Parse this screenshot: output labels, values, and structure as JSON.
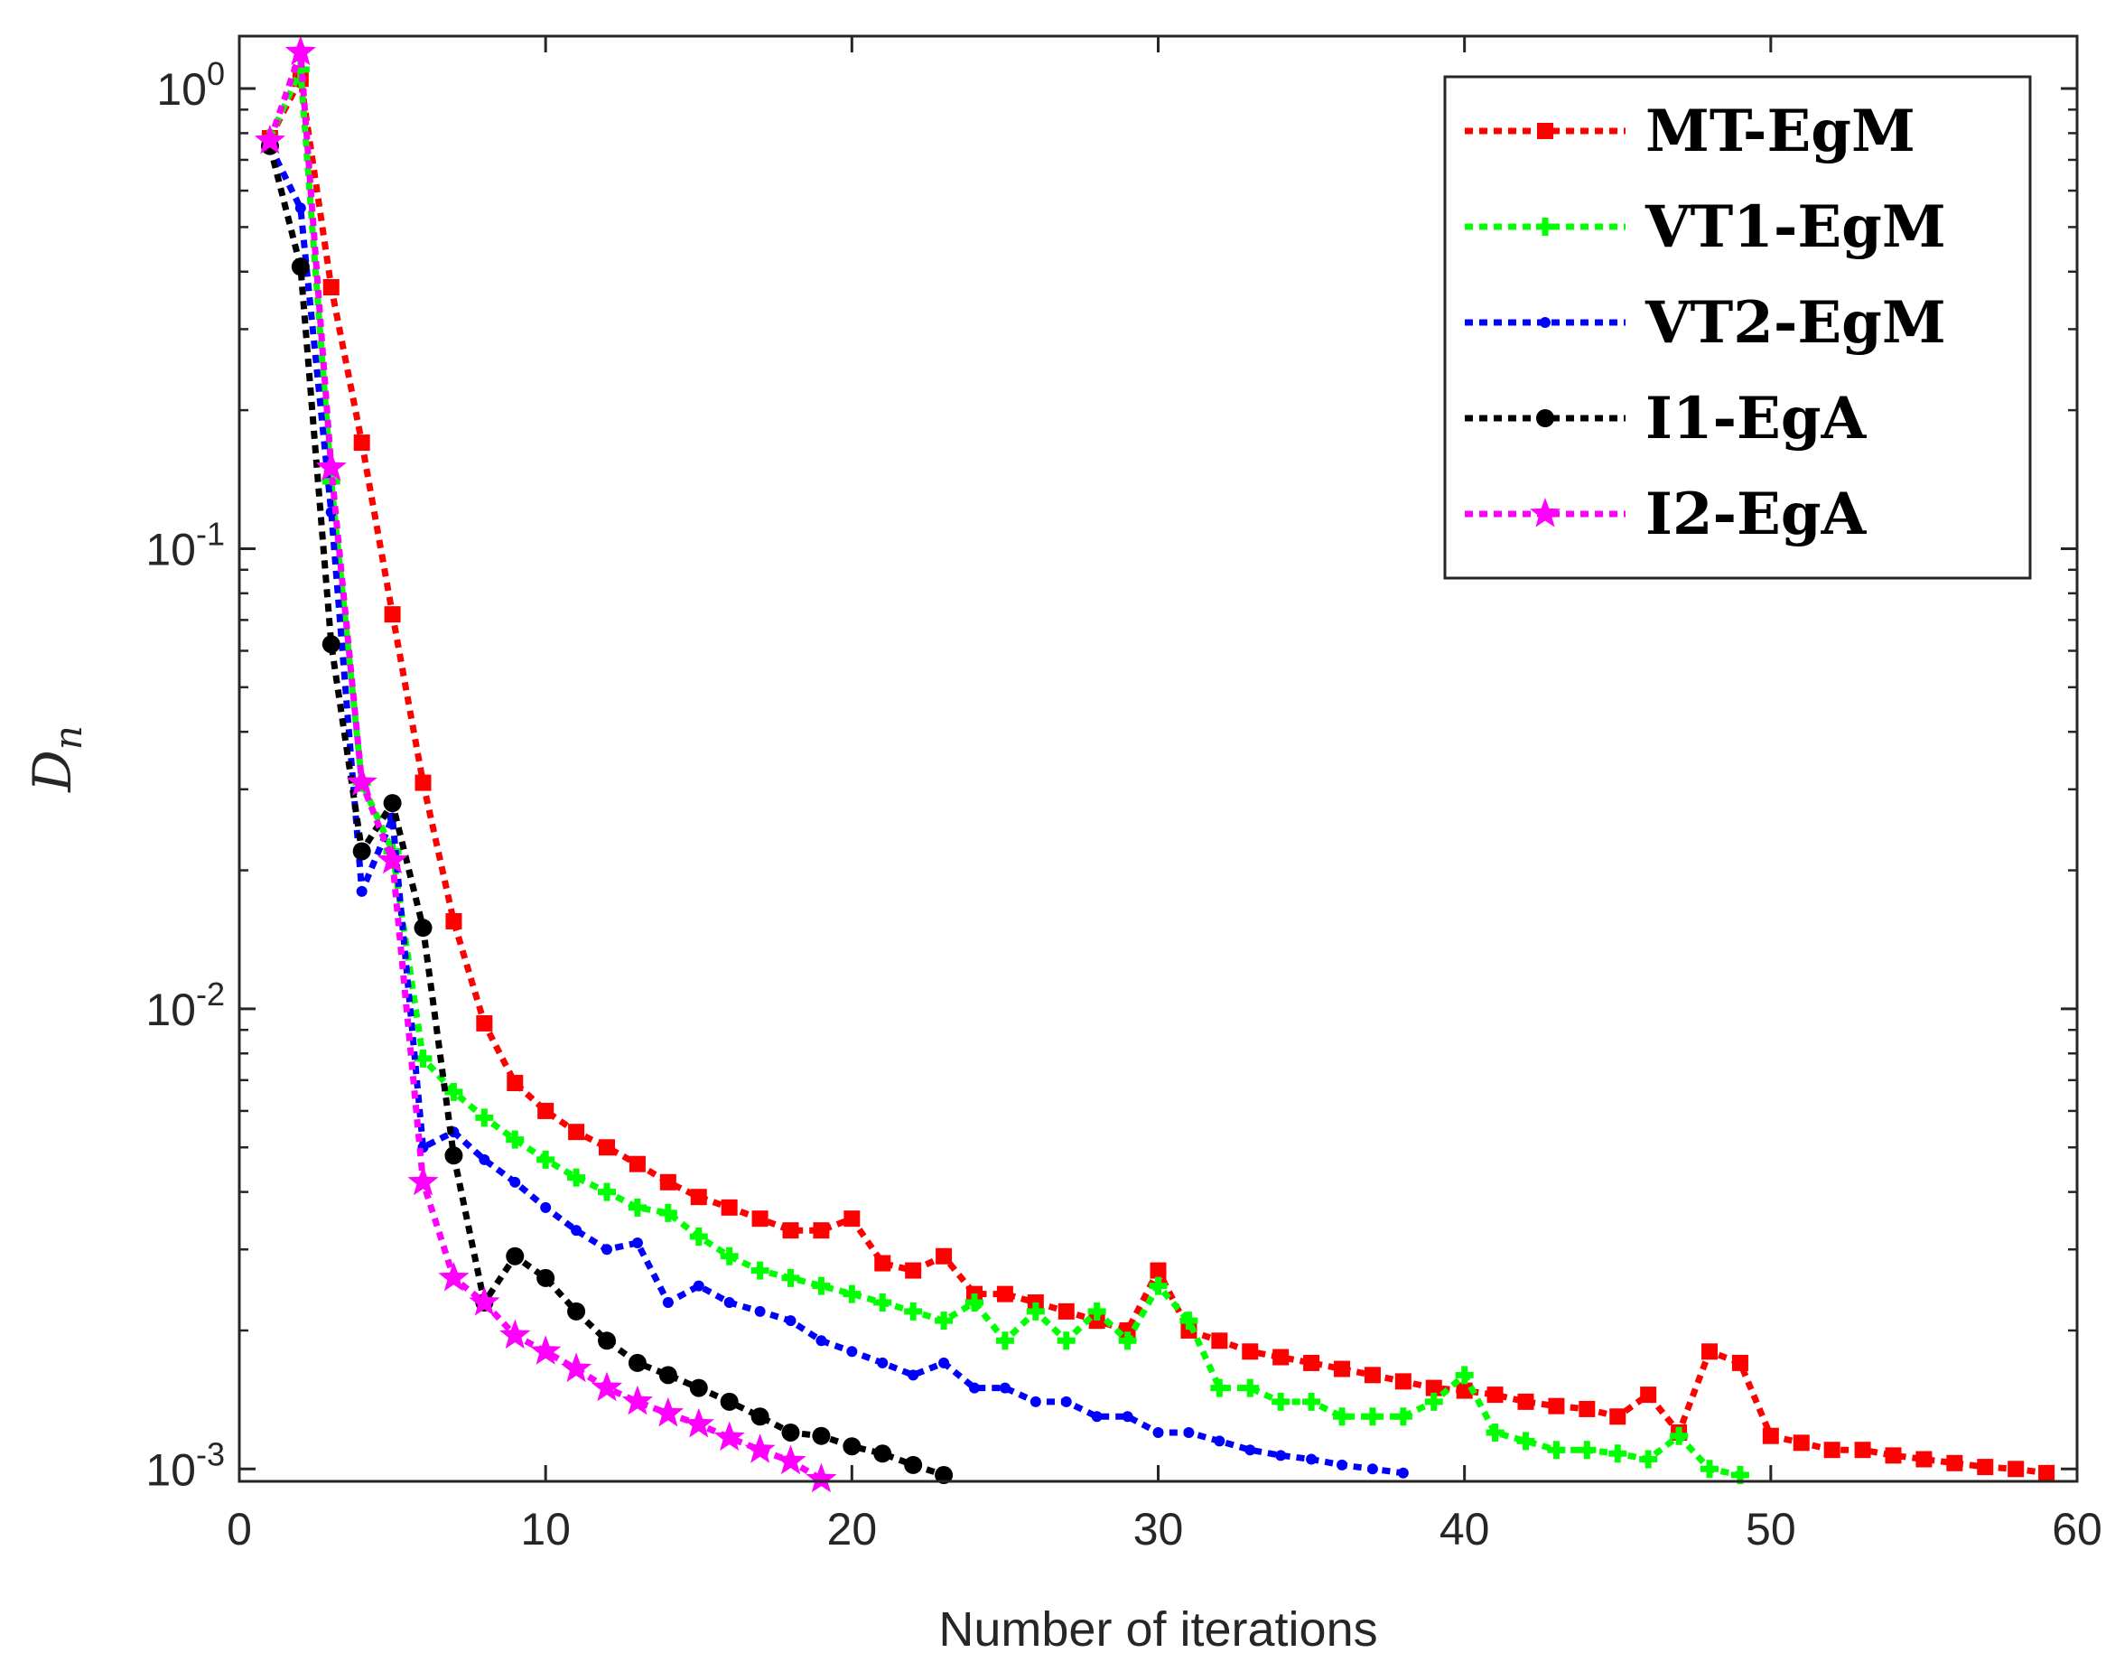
{
  "chart_data": {
    "type": "line",
    "title": "",
    "xlabel": "Number of iterations",
    "ylabel": "D",
    "ylabel_subscript": "n",
    "yscale": "log",
    "xlim": [
      0,
      60
    ],
    "ylim": [
      0.00094,
      1.3
    ],
    "x_ticks": [
      0,
      10,
      20,
      30,
      40,
      50,
      60
    ],
    "y_ticks": [
      {
        "value": 1,
        "base": "10",
        "exp": "0"
      },
      {
        "value": 0.1,
        "base": "10",
        "exp": "-1"
      },
      {
        "value": 0.01,
        "base": "10",
        "exp": "-2"
      },
      {
        "value": 0.001,
        "base": "10",
        "exp": "-3"
      }
    ],
    "legend_position": "top-right",
    "series": [
      {
        "name": "MT-EgM",
        "color": "#ff0000",
        "marker": "square",
        "x": [
          1,
          2,
          3,
          4,
          5,
          6,
          7,
          8,
          9,
          10,
          11,
          12,
          13,
          14,
          15,
          16,
          17,
          18,
          19,
          20,
          21,
          22,
          23,
          24,
          25,
          26,
          27,
          28,
          29,
          30,
          31,
          32,
          33,
          34,
          35,
          36,
          37,
          38,
          39,
          40,
          41,
          42,
          43,
          44,
          45,
          46,
          47,
          48,
          49,
          50,
          51,
          52,
          53,
          54,
          55,
          56,
          57,
          58,
          59
        ],
        "y": [
          0.78,
          1.05,
          0.37,
          0.17,
          0.072,
          0.031,
          0.0155,
          0.0093,
          0.0069,
          0.006,
          0.0054,
          0.005,
          0.0046,
          0.0042,
          0.0039,
          0.0037,
          0.0035,
          0.0033,
          0.0033,
          0.0035,
          0.0028,
          0.0027,
          0.0029,
          0.0024,
          0.0024,
          0.0023,
          0.0022,
          0.0021,
          0.002,
          0.0027,
          0.002,
          0.0019,
          0.0018,
          0.00175,
          0.0017,
          0.00165,
          0.0016,
          0.00155,
          0.0015,
          0.00148,
          0.00145,
          0.0014,
          0.00137,
          0.00135,
          0.0013,
          0.00145,
          0.0012,
          0.0018,
          0.0017,
          0.00118,
          0.00114,
          0.0011,
          0.0011,
          0.00107,
          0.00105,
          0.00103,
          0.00101,
          0.001,
          0.00098
        ]
      },
      {
        "name": "VT1-EgM",
        "color": "#00ff00",
        "marker": "plus",
        "x": [
          1,
          2,
          3,
          4,
          5,
          6,
          7,
          8,
          9,
          10,
          11,
          12,
          13,
          14,
          15,
          16,
          17,
          18,
          19,
          20,
          21,
          22,
          23,
          24,
          25,
          26,
          27,
          28,
          29,
          30,
          31,
          32,
          33,
          34,
          35,
          36,
          37,
          38,
          39,
          40,
          41,
          42,
          43,
          44,
          45,
          46,
          47,
          48,
          49
        ],
        "y": [
          0.78,
          1.1,
          0.14,
          0.031,
          0.022,
          0.0078,
          0.0066,
          0.0058,
          0.0052,
          0.0047,
          0.0043,
          0.004,
          0.0037,
          0.0036,
          0.0032,
          0.0029,
          0.0027,
          0.0026,
          0.0025,
          0.0024,
          0.0023,
          0.0022,
          0.0021,
          0.0023,
          0.0019,
          0.0022,
          0.0019,
          0.0022,
          0.0019,
          0.0025,
          0.0021,
          0.0015,
          0.0015,
          0.0014,
          0.0014,
          0.0013,
          0.0013,
          0.0013,
          0.0014,
          0.0016,
          0.0012,
          0.00115,
          0.0011,
          0.0011,
          0.00108,
          0.00105,
          0.00118,
          0.001,
          0.00097
        ]
      },
      {
        "name": "VT2-EgM",
        "color": "#0000ff",
        "marker": "dot",
        "x": [
          1,
          2,
          3,
          4,
          5,
          6,
          7,
          8,
          9,
          10,
          11,
          12,
          13,
          14,
          15,
          16,
          17,
          18,
          19,
          20,
          21,
          22,
          23,
          24,
          25,
          26,
          27,
          28,
          29,
          30,
          31,
          32,
          33,
          34,
          35,
          36,
          37,
          38
        ],
        "y": [
          0.75,
          0.55,
          0.12,
          0.018,
          0.026,
          0.005,
          0.0054,
          0.0047,
          0.0042,
          0.0037,
          0.0033,
          0.003,
          0.0031,
          0.0023,
          0.0025,
          0.0023,
          0.0022,
          0.0021,
          0.0019,
          0.0018,
          0.0017,
          0.0016,
          0.0017,
          0.0015,
          0.0015,
          0.0014,
          0.0014,
          0.0013,
          0.0013,
          0.0012,
          0.0012,
          0.00115,
          0.0011,
          0.00107,
          0.00105,
          0.00102,
          0.001,
          0.00098
        ]
      },
      {
        "name": "I1-EgA",
        "color": "#000000",
        "marker": "circle",
        "x": [
          1,
          2,
          3,
          4,
          5,
          6,
          7,
          8,
          9,
          10,
          11,
          12,
          13,
          14,
          15,
          16,
          17,
          18,
          19,
          20,
          21,
          22,
          23
        ],
        "y": [
          0.75,
          0.41,
          0.062,
          0.022,
          0.028,
          0.015,
          0.0048,
          0.0023,
          0.0029,
          0.0026,
          0.0022,
          0.0019,
          0.0017,
          0.0016,
          0.0015,
          0.0014,
          0.0013,
          0.0012,
          0.00118,
          0.00112,
          0.00108,
          0.00102,
          0.00097
        ]
      },
      {
        "name": "I2-EgA",
        "color": "#ff00ff",
        "marker": "star",
        "x": [
          1,
          2,
          3,
          4,
          5,
          6,
          7,
          8,
          9,
          10,
          11,
          12,
          13,
          14,
          15,
          16,
          17,
          18,
          19
        ],
        "y": [
          0.77,
          1.2,
          0.15,
          0.031,
          0.021,
          0.0042,
          0.0026,
          0.0023,
          0.00195,
          0.0018,
          0.00165,
          0.0015,
          0.0014,
          0.00132,
          0.00125,
          0.00117,
          0.0011,
          0.00104,
          0.00095
        ]
      }
    ]
  }
}
